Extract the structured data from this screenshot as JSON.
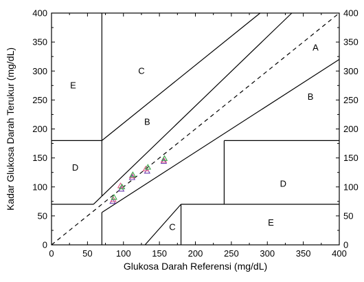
{
  "chart_data": {
    "type": "scatter",
    "title": "",
    "xlabel": "Glukosa Darah Referensi (mg/dL)",
    "ylabel": "Kadar Glukosa Darah Terukur (mg/dL)",
    "xlim": [
      0,
      400
    ],
    "ylim": [
      0,
      400
    ],
    "xticks": [
      0,
      50,
      100,
      150,
      200,
      250,
      300,
      350,
      400
    ],
    "yticks": [
      0,
      50,
      100,
      150,
      200,
      250,
      300,
      350,
      400
    ],
    "grid": false,
    "legend": "none",
    "zone_lines": [
      {
        "from": [
          70,
          0
        ],
        "to": [
          70,
          56
        ]
      },
      {
        "from": [
          70,
          56
        ],
        "to": [
          400,
          320
        ]
      },
      {
        "from": [
          0,
          70
        ],
        "to": [
          58.3,
          70
        ]
      },
      {
        "from": [
          58.3,
          70
        ],
        "to": [
          70,
          84
        ]
      },
      {
        "from": [
          70,
          84
        ],
        "to": [
          70,
          400
        ]
      },
      {
        "from": [
          70,
          180
        ],
        "to": [
          290,
          400
        ]
      },
      {
        "from": [
          0,
          180
        ],
        "to": [
          70,
          180
        ]
      },
      {
        "from": [
          130,
          0
        ],
        "to": [
          180,
          70
        ]
      },
      {
        "from": [
          180,
          0
        ],
        "to": [
          180,
          70
        ]
      },
      {
        "from": [
          180,
          70
        ],
        "to": [
          400,
          70
        ]
      },
      {
        "from": [
          240,
          70
        ],
        "to": [
          240,
          180
        ]
      },
      {
        "from": [
          240,
          180
        ],
        "to": [
          400,
          180
        ]
      },
      {
        "from": [
          70,
          84
        ],
        "to": [
          334,
          400
        ]
      }
    ],
    "identity_line": {
      "from": [
        0,
        0
      ],
      "to": [
        400,
        400
      ]
    },
    "zones": [
      {
        "label": "A",
        "x": 367,
        "y": 340
      },
      {
        "label": "B",
        "x": 360,
        "y": 255
      },
      {
        "label": "B",
        "x": 133,
        "y": 212
      },
      {
        "label": "C",
        "x": 125,
        "y": 300
      },
      {
        "label": "C",
        "x": 168,
        "y": 30
      },
      {
        "label": "D",
        "x": 33,
        "y": 133
      },
      {
        "label": "D",
        "x": 322,
        "y": 105
      },
      {
        "label": "E",
        "x": 30,
        "y": 275
      },
      {
        "label": "E",
        "x": 305,
        "y": 38
      }
    ],
    "series": [
      {
        "marker": "triangle",
        "color": "#6e3fb0",
        "points": [
          [
            85,
            75
          ],
          [
            97,
            96
          ],
          [
            112,
            116
          ],
          [
            133,
            127
          ],
          [
            156,
            144
          ]
        ]
      },
      {
        "marker": "triangle",
        "color": "#e05a86",
        "points": [
          [
            86,
            78
          ],
          [
            96,
            102
          ],
          [
            112,
            119
          ],
          [
            131,
            131
          ],
          [
            156,
            146
          ]
        ]
      },
      {
        "marker": "triangle",
        "color": "#3aa84a",
        "points": [
          [
            87,
            82
          ],
          [
            98,
            100
          ],
          [
            113,
            121
          ],
          [
            134,
            134
          ],
          [
            157,
            149
          ]
        ]
      }
    ]
  }
}
